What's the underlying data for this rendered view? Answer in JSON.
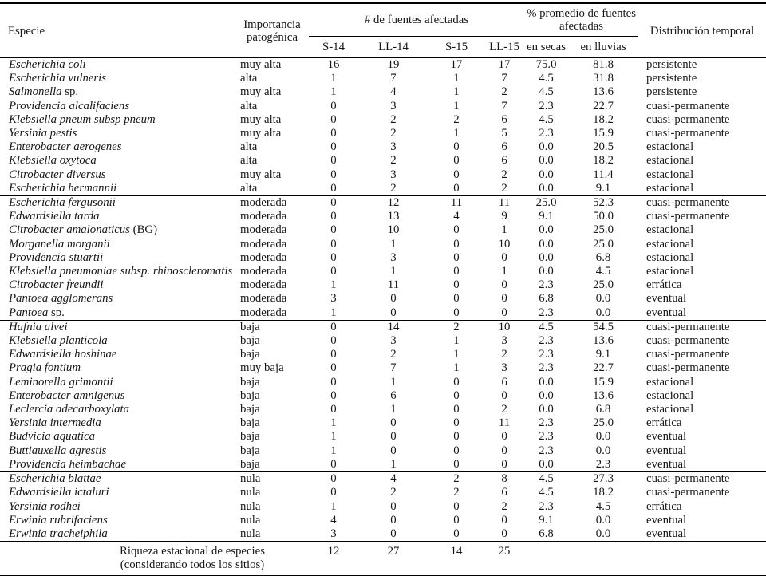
{
  "header": {
    "especie": "Especie",
    "importancia": "Importancia patogénica",
    "fuentes_group": "# de fuentes afectadas",
    "promedio_group": "% promedio de fuentes afectadas",
    "distribucion": "Distribución temporal",
    "season_cols": [
      "S-14",
      "LL-14",
      "S-15",
      "LL-15"
    ],
    "promedio_cols": [
      "en secas",
      "en lluvias"
    ]
  },
  "groups": [
    {
      "name": "importancia-alta",
      "rows": [
        {
          "especie_italic": "Escherichia coli",
          "especie_roman": "",
          "importancia": "muy alta",
          "valores": [
            "16",
            "19",
            "17",
            "17"
          ],
          "promedios": [
            "75.0",
            "81.8"
          ],
          "distribucion": "persistente"
        },
        {
          "especie_italic": "Escherichia vulneris",
          "especie_roman": "",
          "importancia": "alta",
          "valores": [
            "1",
            "7",
            "1",
            "7"
          ],
          "promedios": [
            "4.5",
            "31.8"
          ],
          "distribucion": "persistente"
        },
        {
          "especie_italic": "Salmonella",
          "especie_roman": " sp.",
          "importancia": "muy alta",
          "valores": [
            "1",
            "4",
            "1",
            "2"
          ],
          "promedios": [
            "4.5",
            "13.6"
          ],
          "distribucion": "persistente"
        },
        {
          "especie_italic": "Providencia alcalifaciens",
          "especie_roman": "",
          "importancia": "alta",
          "valores": [
            "0",
            "3",
            "1",
            "7"
          ],
          "promedios": [
            "2.3",
            "22.7"
          ],
          "distribucion": "cuasi-permanente"
        },
        {
          "especie_italic": "Klebsiella pneum subsp pneum",
          "especie_roman": "",
          "importancia": "muy alta",
          "valores": [
            "0",
            "2",
            "2",
            "6"
          ],
          "promedios": [
            "4.5",
            "18.2"
          ],
          "distribucion": "cuasi-permanente"
        },
        {
          "especie_italic": "Yersinia pestis",
          "especie_roman": "",
          "importancia": "muy alta",
          "valores": [
            "0",
            "2",
            "1",
            "5"
          ],
          "promedios": [
            "2.3",
            "15.9"
          ],
          "distribucion": "cuasi-permanente"
        },
        {
          "especie_italic": "Enterobacter aerogenes",
          "especie_roman": "",
          "importancia": "alta",
          "valores": [
            "0",
            "3",
            "0",
            "6"
          ],
          "promedios": [
            "0.0",
            "20.5"
          ],
          "distribucion": "estacional"
        },
        {
          "especie_italic": "Klebsiella oxytoca",
          "especie_roman": "",
          "importancia": "alta",
          "valores": [
            "0",
            "2",
            "0",
            "6"
          ],
          "promedios": [
            "0.0",
            "18.2"
          ],
          "distribucion": "estacional"
        },
        {
          "especie_italic": "Citrobacter diversus",
          "especie_roman": "",
          "importancia": "muy alta",
          "valores": [
            "0",
            "3",
            "0",
            "2"
          ],
          "promedios": [
            "0.0",
            "11.4"
          ],
          "distribucion": "estacional"
        },
        {
          "especie_italic": "Escherichia hermannii",
          "especie_roman": "",
          "importancia": "alta",
          "valores": [
            "0",
            "2",
            "0",
            "2"
          ],
          "promedios": [
            "0.0",
            "9.1"
          ],
          "distribucion": "estacional"
        }
      ]
    },
    {
      "name": "importancia-moderada",
      "rows": [
        {
          "especie_italic": "Escherichia fergusonii",
          "especie_roman": "",
          "importancia": "moderada",
          "valores": [
            "0",
            "12",
            "11",
            "11"
          ],
          "promedios": [
            "25.0",
            "52.3"
          ],
          "distribucion": "cuasi-permanente"
        },
        {
          "especie_italic": "Edwardsiella tarda",
          "especie_roman": "",
          "importancia": "moderada",
          "valores": [
            "0",
            "13",
            "4",
            "9"
          ],
          "promedios": [
            "9.1",
            "50.0"
          ],
          "distribucion": "cuasi-permanente"
        },
        {
          "especie_italic": "Citrobacter amalonaticus",
          "especie_roman": " (BG)",
          "importancia": "moderada",
          "valores": [
            "0",
            "10",
            "0",
            "1"
          ],
          "promedios": [
            "0.0",
            "25.0"
          ],
          "distribucion": "estacional"
        },
        {
          "especie_italic": "Morganella morganii",
          "especie_roman": "",
          "importancia": "moderada",
          "valores": [
            "0",
            "1",
            "0",
            "10"
          ],
          "promedios": [
            "0.0",
            "25.0"
          ],
          "distribucion": "estacional"
        },
        {
          "especie_italic": "Providencia stuartii",
          "especie_roman": "",
          "importancia": "moderada",
          "valores": [
            "0",
            "3",
            "0",
            "0"
          ],
          "promedios": [
            "0.0",
            "6.8"
          ],
          "distribucion": "estacional"
        },
        {
          "especie_italic": "Klebsiella pneumoniae subsp. rhinoscleromatis",
          "especie_roman": "",
          "importancia": "moderada",
          "valores": [
            "0",
            "1",
            "0",
            "1"
          ],
          "promedios": [
            "0.0",
            "4.5"
          ],
          "distribucion": "estacional"
        },
        {
          "especie_italic": "Citrobacter freundii",
          "especie_roman": "",
          "importancia": "moderada",
          "valores": [
            "1",
            "11",
            "0",
            "0"
          ],
          "promedios": [
            "2.3",
            "25.0"
          ],
          "distribucion": "errática"
        },
        {
          "especie_italic": "Pantoea agglomerans",
          "especie_roman": "",
          "importancia": "moderada",
          "valores": [
            "3",
            "0",
            "0",
            "0"
          ],
          "promedios": [
            "6.8",
            "0.0"
          ],
          "distribucion": "eventual"
        },
        {
          "especie_italic": "Pantoea",
          "especie_roman": " sp.",
          "importancia": "moderada",
          "valores": [
            "1",
            "0",
            "0",
            "0"
          ],
          "promedios": [
            "2.3",
            "0.0"
          ],
          "distribucion": "eventual"
        }
      ]
    },
    {
      "name": "importancia-baja",
      "rows": [
        {
          "especie_italic": "Hafnia alvei",
          "especie_roman": "",
          "importancia": "baja",
          "valores": [
            "0",
            "14",
            "2",
            "10"
          ],
          "promedios": [
            "4.5",
            "54.5"
          ],
          "distribucion": "cuasi-permanente"
        },
        {
          "especie_italic": "Klebsiella planticola",
          "especie_roman": "",
          "importancia": "baja",
          "valores": [
            "0",
            "3",
            "1",
            "3"
          ],
          "promedios": [
            "2.3",
            "13.6"
          ],
          "distribucion": "cuasi-permanente"
        },
        {
          "especie_italic": "Edwardsiella hoshinae",
          "especie_roman": "",
          "importancia": "baja",
          "valores": [
            "0",
            "2",
            "1",
            "2"
          ],
          "promedios": [
            "2.3",
            "9.1"
          ],
          "distribucion": "cuasi-permanente"
        },
        {
          "especie_italic": "Pragia fontium",
          "especie_roman": "",
          "importancia": "muy baja",
          "valores": [
            "0",
            "7",
            "1",
            "3"
          ],
          "promedios": [
            "2.3",
            "22.7"
          ],
          "distribucion": "cuasi-permanente"
        },
        {
          "especie_italic": "Leminorella grimontii",
          "especie_roman": "",
          "importancia": "baja",
          "valores": [
            "0",
            "1",
            "0",
            "6"
          ],
          "promedios": [
            "0.0",
            "15.9"
          ],
          "distribucion": "estacional"
        },
        {
          "especie_italic": "Enterobacter amnigenus",
          "especie_roman": "",
          "importancia": "baja",
          "valores": [
            "0",
            "6",
            "0",
            "0"
          ],
          "promedios": [
            "0.0",
            "13.6"
          ],
          "distribucion": "estacional"
        },
        {
          "especie_italic": "Leclercia adecarboxylata",
          "especie_roman": "",
          "importancia": "baja",
          "valores": [
            "0",
            "1",
            "0",
            "2"
          ],
          "promedios": [
            "0.0",
            "6.8"
          ],
          "distribucion": "estacional"
        },
        {
          "especie_italic": "Yersinia intermedia",
          "especie_roman": "",
          "importancia": "baja",
          "valores": [
            "1",
            "0",
            "0",
            "11"
          ],
          "promedios": [
            "2.3",
            "25.0"
          ],
          "distribucion": "errática"
        },
        {
          "especie_italic": "Budvicia aquatica",
          "especie_roman": "",
          "importancia": "baja",
          "valores": [
            "1",
            "0",
            "0",
            "0"
          ],
          "promedios": [
            "2.3",
            "0.0"
          ],
          "distribucion": "eventual"
        },
        {
          "especie_italic": "Buttiauxella agrestis",
          "especie_roman": "",
          "importancia": "baja",
          "valores": [
            "1",
            "0",
            "0",
            "0"
          ],
          "promedios": [
            "2.3",
            "0.0"
          ],
          "distribucion": "eventual"
        },
        {
          "especie_italic": "Providencia heimbachae",
          "especie_roman": "",
          "importancia": "baja",
          "valores": [
            "0",
            "1",
            "0",
            "0"
          ],
          "promedios": [
            "0.0",
            "2.3"
          ],
          "distribucion": "eventual"
        }
      ]
    },
    {
      "name": "importancia-nula",
      "rows": [
        {
          "especie_italic": "Escherichia blattae",
          "especie_roman": "",
          "importancia": "nula",
          "valores": [
            "0",
            "4",
            "2",
            "8"
          ],
          "promedios": [
            "4.5",
            "27.3"
          ],
          "distribucion": "cuasi-permanente"
        },
        {
          "especie_italic": "Edwardsiella ictaluri",
          "especie_roman": "",
          "importancia": "nula",
          "valores": [
            "0",
            "2",
            "2",
            "6"
          ],
          "promedios": [
            "4.5",
            "18.2"
          ],
          "distribucion": "cuasi-permanente"
        },
        {
          "especie_italic": "Yersinia rodhei",
          "especie_roman": "",
          "importancia": "nula",
          "valores": [
            "1",
            "0",
            "0",
            "2"
          ],
          "promedios": [
            "2.3",
            "4.5"
          ],
          "distribucion": "errática"
        },
        {
          "especie_italic": "Erwinia rubrifaciens",
          "especie_roman": "",
          "importancia": "nula",
          "valores": [
            "4",
            "0",
            "0",
            "0"
          ],
          "promedios": [
            "9.1",
            "0.0"
          ],
          "distribucion": "eventual"
        },
        {
          "especie_italic": "Erwinia tracheiphila",
          "especie_roman": "",
          "importancia": "nula",
          "valores": [
            "3",
            "0",
            "0",
            "0"
          ],
          "promedios": [
            "6.8",
            "0.0"
          ],
          "distribucion": "eventual"
        }
      ]
    }
  ],
  "footer": {
    "label_line1": "Riqueza estacional de especies",
    "label_line2": "(considerando todos los sitios)",
    "values": [
      "12",
      "27",
      "14",
      "25"
    ]
  },
  "colors": {
    "text": "#161616",
    "rule": "#000000",
    "background": "#ffffff"
  }
}
